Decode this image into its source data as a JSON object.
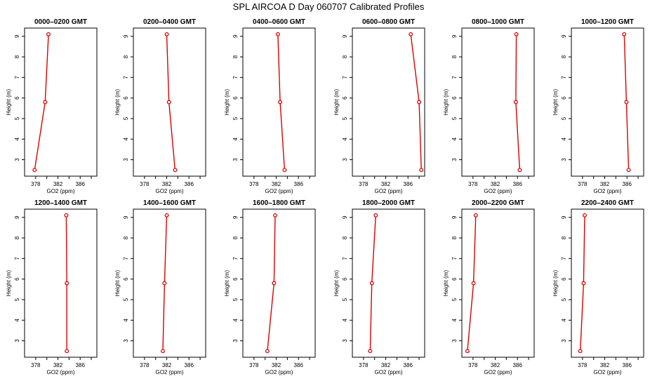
{
  "figure_title": "SPL AIRCOA D  Day 060707  Calibrated Profiles",
  "colors": {
    "series": "#dd0000",
    "axis": "#000000",
    "background": "#ffffff"
  },
  "chart_data": [
    {
      "type": "line",
      "title": "0000–0200 GMT",
      "xlabel": "GO2 (ppm)",
      "ylabel": "Height (m)",
      "xlim": [
        376,
        389
      ],
      "ylim": [
        2.2,
        9.4
      ],
      "xticks": [
        "378",
        "382",
        "386"
      ],
      "yticks": [
        "3",
        "4",
        "5",
        "6",
        "7",
        "8",
        "9"
      ],
      "series": [
        {
          "x": [
            380.3,
            379.7,
            377.8
          ],
          "y": [
            9.1,
            5.8,
            2.5
          ]
        }
      ]
    },
    {
      "type": "line",
      "title": "0200–0400 GMT",
      "xlabel": "GO2 (ppm)",
      "ylabel": "Height (m)",
      "xlim": [
        376,
        389
      ],
      "ylim": [
        2.2,
        9.4
      ],
      "xticks": [
        "378",
        "382",
        "386"
      ],
      "yticks": [
        "3",
        "4",
        "5",
        "6",
        "7",
        "8",
        "9"
      ],
      "series": [
        {
          "x": [
            382.0,
            382.4,
            383.5
          ],
          "y": [
            9.1,
            5.8,
            2.5
          ]
        }
      ]
    },
    {
      "type": "line",
      "title": "0400–0600 GMT",
      "xlabel": "GO2 (ppm)",
      "ylabel": "Height (m)",
      "xlim": [
        376,
        389
      ],
      "ylim": [
        2.2,
        9.4
      ],
      "xticks": [
        "378",
        "382",
        "386"
      ],
      "yticks": [
        "3",
        "4",
        "5",
        "6",
        "7",
        "8",
        "9"
      ],
      "series": [
        {
          "x": [
            382.3,
            382.7,
            383.5
          ],
          "y": [
            9.1,
            5.8,
            2.5
          ]
        }
      ]
    },
    {
      "type": "line",
      "title": "0600–0800 GMT",
      "xlabel": "GO2 (ppm)",
      "ylabel": "Height (m)",
      "xlim": [
        376,
        389
      ],
      "ylim": [
        2.2,
        9.4
      ],
      "xticks": [
        "378",
        "382",
        "386"
      ],
      "yticks": [
        "3",
        "4",
        "5",
        "6",
        "7",
        "8",
        "9"
      ],
      "series": [
        {
          "x": [
            386.5,
            388.0,
            388.4
          ],
          "y": [
            9.1,
            5.8,
            2.5
          ]
        }
      ]
    },
    {
      "type": "line",
      "title": "0800–1000 GMT",
      "xlabel": "GO2 (ppm)",
      "ylabel": "Height (m)",
      "xlim": [
        376,
        389
      ],
      "ylim": [
        2.2,
        9.4
      ],
      "xticks": [
        "378",
        "382",
        "386"
      ],
      "yticks": [
        "3",
        "4",
        "5",
        "6",
        "7",
        "8",
        "9"
      ],
      "series": [
        {
          "x": [
            385.8,
            385.7,
            386.4
          ],
          "y": [
            9.1,
            5.8,
            2.5
          ]
        }
      ]
    },
    {
      "type": "line",
      "title": "1000–1200 GMT",
      "xlabel": "GO2 (ppm)",
      "ylabel": "Height (m)",
      "xlim": [
        376,
        389
      ],
      "ylim": [
        2.2,
        9.4
      ],
      "xticks": [
        "378",
        "382",
        "386"
      ],
      "yticks": [
        "3",
        "4",
        "5",
        "6",
        "7",
        "8",
        "9"
      ],
      "series": [
        {
          "x": [
            385.5,
            385.9,
            386.3
          ],
          "y": [
            9.1,
            5.8,
            2.5
          ]
        }
      ]
    },
    {
      "type": "line",
      "title": "1200–1400 GMT",
      "xlabel": "GO2 (ppm)",
      "ylabel": "Height (m)",
      "xlim": [
        376,
        389
      ],
      "ylim": [
        2.2,
        9.4
      ],
      "xticks": [
        "378",
        "382",
        "386"
      ],
      "yticks": [
        "3",
        "4",
        "5",
        "6",
        "7",
        "8",
        "9"
      ],
      "series": [
        {
          "x": [
            383.5,
            383.6,
            383.6
          ],
          "y": [
            9.1,
            5.8,
            2.5
          ]
        }
      ]
    },
    {
      "type": "line",
      "title": "1400–1600 GMT",
      "xlabel": "GO2 (ppm)",
      "ylabel": "Height (m)",
      "xlim": [
        376,
        389
      ],
      "ylim": [
        2.2,
        9.4
      ],
      "xticks": [
        "378",
        "382",
        "386"
      ],
      "yticks": [
        "3",
        "4",
        "5",
        "6",
        "7",
        "8",
        "9"
      ],
      "series": [
        {
          "x": [
            382.0,
            381.6,
            381.3
          ],
          "y": [
            9.1,
            5.8,
            2.5
          ]
        }
      ]
    },
    {
      "type": "line",
      "title": "1600–1800 GMT",
      "xlabel": "GO2 (ppm)",
      "ylabel": "Height (m)",
      "xlim": [
        376,
        389
      ],
      "ylim": [
        2.2,
        9.4
      ],
      "xticks": [
        "378",
        "382",
        "386"
      ],
      "yticks": [
        "3",
        "4",
        "5",
        "6",
        "7",
        "8",
        "9"
      ],
      "series": [
        {
          "x": [
            381.8,
            381.6,
            380.4
          ],
          "y": [
            9.1,
            5.8,
            2.5
          ]
        }
      ]
    },
    {
      "type": "line",
      "title": "1800–2000 GMT",
      "xlabel": "GO2 (ppm)",
      "ylabel": "Height (m)",
      "xlim": [
        376,
        389
      ],
      "ylim": [
        2.2,
        9.4
      ],
      "xticks": [
        "378",
        "382",
        "386"
      ],
      "yticks": [
        "3",
        "4",
        "5",
        "6",
        "7",
        "8",
        "9"
      ],
      "series": [
        {
          "x": [
            380.2,
            379.5,
            379.2
          ],
          "y": [
            9.1,
            5.8,
            2.5
          ]
        }
      ]
    },
    {
      "type": "line",
      "title": "2000–2200 GMT",
      "xlabel": "GO2 (ppm)",
      "ylabel": "Height (m)",
      "xlim": [
        376,
        389
      ],
      "ylim": [
        2.2,
        9.4
      ],
      "xticks": [
        "378",
        "382",
        "386"
      ],
      "yticks": [
        "3",
        "4",
        "5",
        "6",
        "7",
        "8",
        "9"
      ],
      "series": [
        {
          "x": [
            378.5,
            378.1,
            377.0
          ],
          "y": [
            9.1,
            5.8,
            2.5
          ]
        }
      ]
    },
    {
      "type": "line",
      "title": "2200–2400 GMT",
      "xlabel": "GO2 (ppm)",
      "ylabel": "Height (m)",
      "xlim": [
        376,
        389
      ],
      "ylim": [
        2.2,
        9.4
      ],
      "xticks": [
        "378",
        "382",
        "386"
      ],
      "yticks": [
        "3",
        "4",
        "5",
        "6",
        "7",
        "8",
        "9"
      ],
      "series": [
        {
          "x": [
            378.4,
            378.2,
            377.6
          ],
          "y": [
            9.1,
            5.8,
            2.5
          ]
        }
      ]
    }
  ]
}
